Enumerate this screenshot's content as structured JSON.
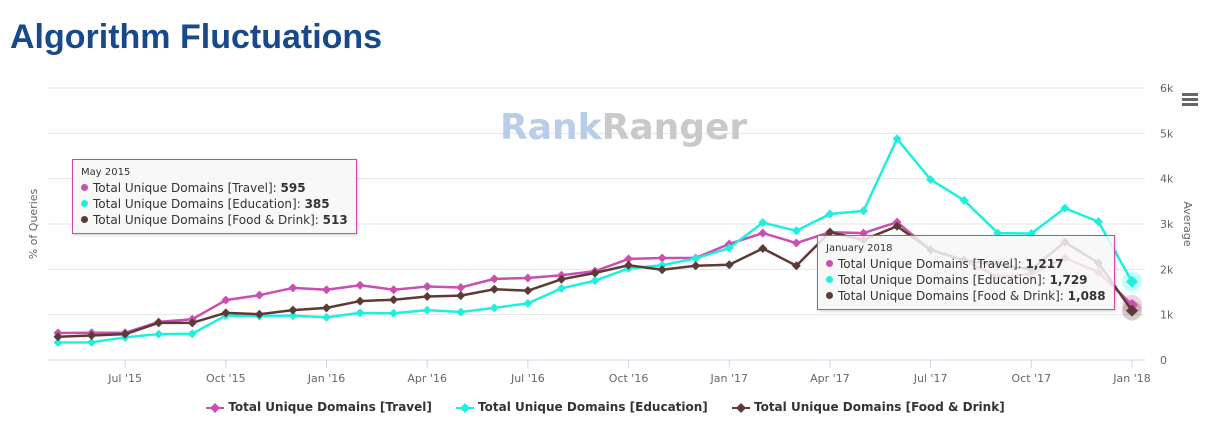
{
  "title": "Algorithm Fluctuations",
  "watermark": {
    "part1": "Rank",
    "part2": "Ranger"
  },
  "chart_data": {
    "type": "line",
    "left_axis_label": "% of Queries",
    "right_axis_label": "Average",
    "ylim": [
      0,
      6000
    ],
    "y_ticks": [
      "0",
      "1k",
      "2k",
      "3k",
      "4k",
      "5k",
      "6k"
    ],
    "x": [
      "May 2015",
      "Jun 2015",
      "Jul 2015",
      "Aug 2015",
      "Sep 2015",
      "Oct 2015",
      "Nov 2015",
      "Dec 2015",
      "Jan 2016",
      "Feb 2016",
      "Mar 2016",
      "Apr 2016",
      "May 2016",
      "Jun 2016",
      "Jul 2016",
      "Aug 2016",
      "Sep 2016",
      "Oct 2016",
      "Nov 2016",
      "Dec 2016",
      "Jan 2017",
      "Feb 2017",
      "Mar 2017",
      "Apr 2017",
      "May 2017",
      "Jun 2017",
      "Jul 2017",
      "Aug 2017",
      "Sep 2017",
      "Oct 2017",
      "Nov 2017",
      "Dec 2017",
      "Jan 2018"
    ],
    "x_ticks": [
      {
        "index": 2,
        "label": "Jul '15"
      },
      {
        "index": 5,
        "label": "Oct '15"
      },
      {
        "index": 8,
        "label": "Jan '16"
      },
      {
        "index": 11,
        "label": "Apr '16"
      },
      {
        "index": 14,
        "label": "Jul '16"
      },
      {
        "index": 17,
        "label": "Oct '16"
      },
      {
        "index": 20,
        "label": "Jan '17"
      },
      {
        "index": 23,
        "label": "Apr '17"
      },
      {
        "index": 26,
        "label": "Jul '17"
      },
      {
        "index": 29,
        "label": "Oct '17"
      },
      {
        "index": 32,
        "label": "Jan '18"
      }
    ],
    "series": [
      {
        "name": "Total Unique Domains [Travel]",
        "color": "#c94fb0",
        "values": [
          595,
          600,
          600,
          840,
          900,
          1320,
          1430,
          1590,
          1550,
          1650,
          1550,
          1620,
          1600,
          1790,
          1810,
          1870,
          1960,
          2230,
          2250,
          2250,
          2560,
          2800,
          2580,
          2820,
          2800,
          3040,
          2430,
          2200,
          1830,
          1900,
          2250,
          1940,
          1217
        ]
      },
      {
        "name": "Total Unique Domains [Education]",
        "color": "#1ef0e0",
        "values": [
          385,
          390,
          500,
          570,
          580,
          980,
          970,
          980,
          940,
          1040,
          1030,
          1100,
          1060,
          1150,
          1250,
          1580,
          1750,
          2020,
          2090,
          2240,
          2470,
          3030,
          2850,
          3220,
          3290,
          4880,
          3980,
          3520,
          2800,
          2790,
          3350,
          3050,
          1729
        ]
      },
      {
        "name": "Total Unique Domains [Food & Drink]",
        "color": "#5e3a36",
        "values": [
          513,
          540,
          570,
          820,
          820,
          1040,
          1010,
          1100,
          1150,
          1300,
          1330,
          1400,
          1420,
          1560,
          1530,
          1780,
          1920,
          2090,
          1990,
          2080,
          2100,
          2460,
          2080,
          2820,
          2650,
          2950,
          2430,
          2200,
          2100,
          2000,
          2600,
          2140,
          1088
        ]
      }
    ],
    "legend_position": "bottom",
    "grid": true
  },
  "tooltips": [
    {
      "header": "May 2015",
      "rows": [
        {
          "label": "Total Unique Domains [Travel]: ",
          "value": "595"
        },
        {
          "label": "Total Unique Domains [Education]: ",
          "value": "385"
        },
        {
          "label": "Total Unique Domains [Food & Drink]: ",
          "value": "513"
        }
      ]
    },
    {
      "header": "January 2018",
      "rows": [
        {
          "label": "Total Unique Domains [Travel]: ",
          "value": "1,217"
        },
        {
          "label": "Total Unique Domains [Education]: ",
          "value": "1,729"
        },
        {
          "label": "Total Unique Domains [Food & Drink]: ",
          "value": "1,088"
        }
      ]
    }
  ],
  "colors": {
    "title": "#17498b",
    "tooltip_border": "#c64aa8"
  }
}
